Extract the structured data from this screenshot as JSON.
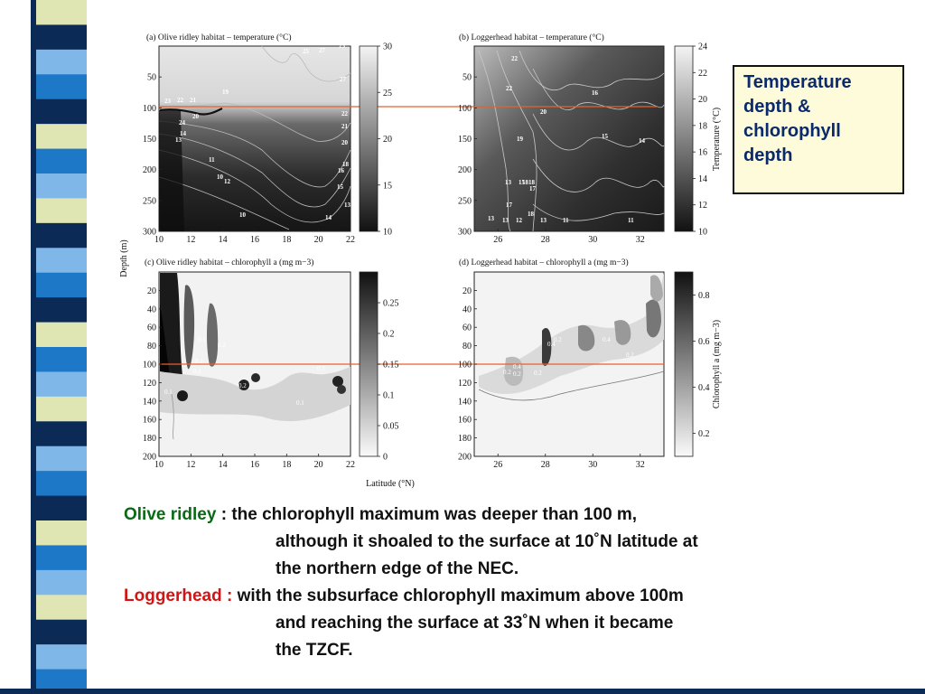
{
  "callout": {
    "lines": [
      "Temperature",
      "depth &",
      "chlorophyll",
      "depth"
    ]
  },
  "caption": {
    "olive_label": "Olive ridley",
    "olive_lines": [
      " : the chlorophyll maximum was deeper than 100 m,",
      "although it shoaled to the surface at 10˚N latitude at",
      "the northern edge of the NEC."
    ],
    "logger_label": "Loggerhead :",
    "logger_lines": [
      " with the subsurface chlorophyll maximum above 100m",
      "and reaching the surface at 33˚N when it became",
      "the TZCF."
    ]
  },
  "chart_data": [
    {
      "type": "heatmap",
      "title": "(a) Olive  ridley habitat – temperature (°C)",
      "ylabel": "Depth (m)",
      "x_ticks": [
        10,
        12,
        14,
        16,
        18,
        20,
        22
      ],
      "y_ticks": [
        50,
        100,
        150,
        200,
        250,
        300
      ],
      "xlim": [
        10,
        22
      ],
      "ylim": [
        300,
        0
      ],
      "colorbar": {
        "ticks": [
          10,
          15,
          20,
          25,
          30
        ],
        "range": [
          10,
          30
        ],
        "label": ""
      },
      "contour_labels": [
        "25",
        "27",
        "27",
        "25",
        "23",
        "22",
        "21",
        "20",
        "19",
        "24",
        "14",
        "13",
        "11",
        "10",
        "12",
        "10",
        "22",
        "21",
        "20",
        "18",
        "16",
        "15",
        "13",
        "14"
      ]
    },
    {
      "type": "heatmap",
      "title": "(b) Loggerhead habitat – temperature (°C)",
      "x_ticks": [
        26,
        28,
        30,
        32
      ],
      "y_ticks": [
        50,
        100,
        150,
        200,
        250,
        300
      ],
      "xlim": [
        25,
        33
      ],
      "ylim": [
        300,
        0
      ],
      "colorbar": {
        "ticks": [
          10,
          12,
          14,
          16,
          18,
          20,
          22,
          24
        ],
        "range": [
          10,
          24
        ],
        "label": "Temperature (°C)"
      },
      "contour_labels": [
        "22",
        "22",
        "19",
        "18",
        "18",
        "17",
        "16",
        "20",
        "15",
        "14",
        "13",
        "15",
        "18",
        "17",
        "13",
        "13",
        "12",
        "13",
        "11",
        "11"
      ]
    },
    {
      "type": "heatmap",
      "title": "(c) Olive  ridley habitat – chlorophyll a (mg m−3)",
      "x_ticks": [
        10,
        12,
        14,
        16,
        18,
        20,
        22
      ],
      "y_ticks": [
        20,
        40,
        60,
        80,
        100,
        120,
        140,
        160,
        180,
        200
      ],
      "xlim": [
        10,
        22
      ],
      "ylim": [
        200,
        0
      ],
      "colorbar": {
        "ticks": [
          0,
          0.05,
          0.1,
          0.15,
          0.2,
          0.25
        ],
        "range": [
          0,
          0.3
        ],
        "label": ""
      },
      "contour_labels": [
        "0.1",
        "0.2",
        "0.2",
        "0.1",
        "0.1",
        "0.2",
        "0.1",
        "0.1"
      ]
    },
    {
      "type": "heatmap",
      "title": "(d) Loggerhead habitat – chlorophyll a (mg m−3)",
      "xlabel": "Latitude (°N)",
      "x_ticks": [
        26,
        28,
        30,
        32
      ],
      "y_ticks": [
        20,
        40,
        60,
        80,
        100,
        120,
        140,
        160,
        180,
        200
      ],
      "xlim": [
        25,
        33
      ],
      "ylim": [
        200,
        0
      ],
      "colorbar": {
        "ticks": [
          0.2,
          0.4,
          0.6,
          0.8
        ],
        "range": [
          0.1,
          0.9
        ],
        "label": "Chlorophyll a (mg m−3)"
      },
      "contour_labels": [
        "0.2",
        "0.2",
        "0.4",
        "0.2",
        "0.4",
        "0.2",
        "0.4",
        "0.2"
      ]
    }
  ],
  "reference_lines": {
    "color": "#e8602c",
    "depth_m": 100
  },
  "colors": {
    "stripe_light": "#dfe6b4",
    "stripe_blue": "#1e78c8",
    "stripe_navy": "#0b2a55",
    "stripe_sky": "#7fb8e8",
    "olive_label": "#0a6a14",
    "logger_label": "#d21414",
    "callout_bg": "#fdfbd9"
  }
}
